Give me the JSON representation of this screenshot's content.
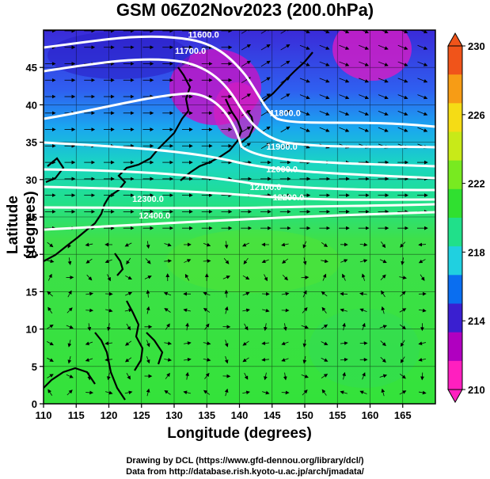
{
  "title": "GSM 06Z02Nov2023 (200.0hPa)",
  "axes": {
    "xlabel": "Longitude (degrees)",
    "ylabel": "Latitude  (degrees)",
    "xticks": [
      "110",
      "115",
      "120",
      "125",
      "130",
      "135",
      "140",
      "145",
      "150",
      "155",
      "160",
      "165"
    ],
    "yticks": [
      "0",
      "5",
      "10",
      "15",
      "20",
      "25",
      "30",
      "35",
      "40",
      "45"
    ],
    "xlim": [
      110,
      170
    ],
    "ylim": [
      0,
      50
    ]
  },
  "colorbar": {
    "ticks": [
      "210",
      "214",
      "218",
      "222",
      "226",
      "230"
    ],
    "range": [
      210,
      230
    ],
    "colors": [
      "#ff1fbf",
      "#b000c0",
      "#3a1fd0",
      "#0a6ef0",
      "#20d0e0",
      "#20e08a",
      "#30e030",
      "#78ea20",
      "#c8ea18",
      "#f5dc15",
      "#f79c15",
      "#f0541a"
    ]
  },
  "contour_labels": [
    {
      "text": "11600.0",
      "lon": 134.5,
      "lat": 49.0
    },
    {
      "text": "11700.0",
      "lon": 132.5,
      "lat": 46.8
    },
    {
      "text": "11800.0",
      "lon": 147.0,
      "lat": 38.5
    },
    {
      "text": "11900.0",
      "lon": 146.5,
      "lat": 34.0
    },
    {
      "text": "12000.0",
      "lon": 146.5,
      "lat": 31.0
    },
    {
      "text": "12100.0",
      "lon": 144.0,
      "lat": 28.6
    },
    {
      "text": "12200.0",
      "lon": 147.5,
      "lat": 27.2
    },
    {
      "text": "12300.0",
      "lon": 126.0,
      "lat": 27.0
    },
    {
      "text": "12400.0",
      "lon": 127.0,
      "lat": 24.8
    }
  ],
  "credits": {
    "line1": "Drawing by DCL (https://www.gfd-dennou.org/library/dcl/)",
    "line2": "Data from http://database.rish.kyoto-u.ac.jp/arch/jmadata/"
  }
}
